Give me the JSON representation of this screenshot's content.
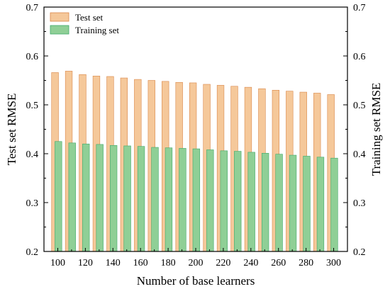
{
  "chart_data": {
    "type": "bar",
    "xlabel": "Number of base learners",
    "ylabel_left": "Test set RMSE",
    "ylabel_right": "Training set RMSE",
    "ylim": [
      0.2,
      0.7
    ],
    "yticks": [
      0.2,
      0.3,
      0.4,
      0.5,
      0.6,
      0.7
    ],
    "categories": [
      100,
      110,
      120,
      130,
      140,
      150,
      160,
      170,
      180,
      190,
      200,
      210,
      220,
      230,
      240,
      250,
      260,
      270,
      280,
      290,
      300
    ],
    "xtick_labels": [
      "100",
      "120",
      "140",
      "160",
      "180",
      "200",
      "220",
      "240",
      "260",
      "280",
      "300"
    ],
    "series": [
      {
        "name": "Test set",
        "color": "#f5c89a",
        "stroke": "#d9874a",
        "values": [
          0.566,
          0.569,
          0.562,
          0.559,
          0.558,
          0.555,
          0.552,
          0.55,
          0.548,
          0.546,
          0.545,
          0.542,
          0.54,
          0.538,
          0.536,
          0.533,
          0.53,
          0.528,
          0.526,
          0.524,
          0.521
        ]
      },
      {
        "name": "Training set",
        "color": "#8fcf96",
        "stroke": "#3fa86a",
        "values": [
          0.425,
          0.422,
          0.42,
          0.419,
          0.417,
          0.416,
          0.415,
          0.413,
          0.412,
          0.411,
          0.41,
          0.408,
          0.406,
          0.405,
          0.403,
          0.401,
          0.399,
          0.397,
          0.395,
          0.393,
          0.391
        ]
      }
    ],
    "legend_position": "top-left",
    "grid": false
  }
}
